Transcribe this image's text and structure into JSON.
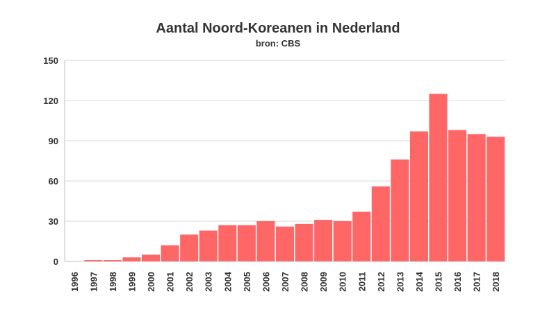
{
  "chart_data": {
    "type": "bar",
    "title": "Aantal Noord-Koreanen in Nederland",
    "subtitle": "bron: CBS",
    "xlabel": "",
    "ylabel": "",
    "categories": [
      "1996",
      "1997",
      "1998",
      "1999",
      "2000",
      "2001",
      "2002",
      "2003",
      "2004",
      "2005",
      "2006",
      "2007",
      "2008",
      "2009",
      "2010",
      "2011",
      "2012",
      "2013",
      "2014",
      "2015",
      "2016",
      "2017",
      "2018"
    ],
    "values": [
      0,
      1,
      1,
      3,
      5,
      12,
      20,
      23,
      27,
      27,
      30,
      26,
      28,
      31,
      30,
      37,
      56,
      76,
      97,
      125,
      98,
      95,
      93
    ],
    "ylim": [
      0,
      150
    ],
    "yticks": [
      0,
      30,
      60,
      90,
      120,
      150
    ],
    "bar_color": "#ff6666",
    "grid": true
  }
}
